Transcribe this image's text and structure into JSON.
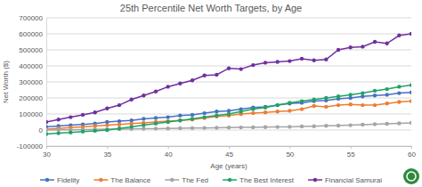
{
  "chart_data": {
    "type": "line",
    "title": "25th Percentile Net Worth Targets, by Age",
    "x_label": "Age (years)",
    "y_label": "Net Worth ($)",
    "x": [
      30,
      31,
      32,
      33,
      34,
      35,
      36,
      37,
      38,
      39,
      40,
      41,
      42,
      43,
      44,
      45,
      46,
      47,
      48,
      49,
      50,
      51,
      52,
      53,
      54,
      55,
      56,
      57,
      58,
      59,
      60
    ],
    "xlim": [
      30,
      60
    ],
    "xticks": [
      30,
      35,
      40,
      45,
      50,
      55,
      60
    ],
    "ylim": [
      -100000,
      700000
    ],
    "yticks": [
      -100000,
      0,
      100000,
      200000,
      300000,
      400000,
      500000,
      600000,
      700000
    ],
    "grid": true,
    "legend": "bottom",
    "marker": "circle",
    "series": [
      {
        "name": "Fidelity",
        "color": "#4472c4",
        "values": [
          20000,
          25000,
          30000,
          35000,
          40000,
          50000,
          55000,
          60000,
          70000,
          75000,
          80000,
          90000,
          95000,
          105000,
          115000,
          120000,
          130000,
          140000,
          145000,
          155000,
          165000,
          170000,
          180000,
          185000,
          195000,
          200000,
          210000,
          215000,
          220000,
          230000,
          235000
        ]
      },
      {
        "name": "The Balance",
        "color": "#ed7d31",
        "values": [
          5000,
          10000,
          15000,
          20000,
          25000,
          30000,
          35000,
          40000,
          45000,
          50000,
          55000,
          60000,
          65000,
          75000,
          85000,
          90000,
          100000,
          105000,
          110000,
          115000,
          120000,
          130000,
          150000,
          145000,
          155000,
          160000,
          155000,
          155000,
          165000,
          175000,
          180000
        ]
      },
      {
        "name": "The Fed",
        "color": "#a5a5a5",
        "values": [
          0,
          1000,
          2000,
          3000,
          4000,
          5000,
          6000,
          7000,
          8000,
          9000,
          10000,
          11000,
          12000,
          13000,
          14000,
          15000,
          16000,
          17000,
          18000,
          19000,
          20000,
          22000,
          24000,
          26000,
          28000,
          30000,
          33000,
          36000,
          39000,
          42000,
          45000
        ]
      },
      {
        "name": "The Best Interest",
        "color": "#21a366",
        "values": [
          -25000,
          -20000,
          -15000,
          -10000,
          -5000,
          0,
          10000,
          20000,
          30000,
          40000,
          50000,
          60000,
          70000,
          80000,
          90000,
          100000,
          115000,
          130000,
          140000,
          155000,
          170000,
          180000,
          190000,
          200000,
          210000,
          220000,
          230000,
          245000,
          255000,
          270000,
          280000
        ]
      },
      {
        "name": "Financial Samurai",
        "color": "#7030a0",
        "values": [
          50000,
          65000,
          80000,
          95000,
          110000,
          135000,
          155000,
          190000,
          215000,
          240000,
          270000,
          290000,
          310000,
          340000,
          345000,
          385000,
          380000,
          405000,
          420000,
          425000,
          430000,
          445000,
          435000,
          440000,
          500000,
          515000,
          520000,
          550000,
          540000,
          590000,
          600000
        ]
      }
    ]
  }
}
